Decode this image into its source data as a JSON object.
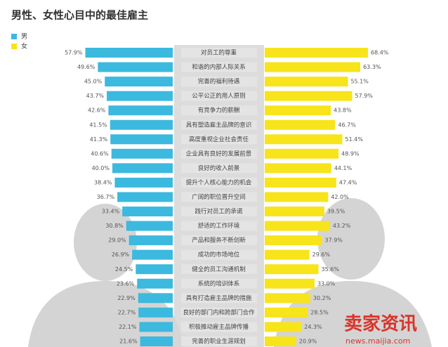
{
  "chart_data": {
    "type": "butterfly",
    "title": "男性、女性心目中的最佳雇主",
    "categories": [
      "对员工的尊重",
      "和谐的内部人际关系",
      "完善的福利待遇",
      "公平公正的用人原则",
      "有竞争力的薪酬",
      "具有塑造雇主品牌的意识",
      "高度重视企业社会责任",
      "企业具有良好的发展前景",
      "良好的收入前景",
      "提升个人核心能力的机会",
      "广阔的职位晋升空间",
      "践行对员工的承诺",
      "舒适的工作环境",
      "产品和服务不断创新",
      "成功的市场地位",
      "健全的员工沟通机制",
      "系统的培训体系",
      "具有打造雇主品牌的措施",
      "良好的部门内和跨部门合作",
      "积极推动雇主品牌传播",
      "完善的职业生涯规划"
    ],
    "series": [
      {
        "name": "男",
        "color": "#3cb9de",
        "values": [
          57.9,
          49.6,
          45.0,
          43.7,
          42.6,
          41.5,
          41.3,
          40.6,
          40.0,
          38.4,
          36.7,
          33.4,
          30.8,
          29.0,
          26.9,
          24.5,
          23.6,
          22.9,
          22.7,
          22.1,
          21.6
        ],
        "value_labels": [
          "57.9%",
          "49.6%",
          "45.0%",
          "43.7%",
          "42.6%",
          "41.5%",
          "41.3%",
          "40.6%",
          "40.0%",
          "38.4%",
          "36.7%",
          "33.4%",
          "30.8%",
          "29.0%",
          "26.9%",
          "24.5%",
          "23.6%",
          "22.9%",
          "22.7%",
          "22.1%",
          "21.6%"
        ]
      },
      {
        "name": "女",
        "color": "#f7e41b",
        "values": [
          68.4,
          63.3,
          55.1,
          57.9,
          43.8,
          46.7,
          51.4,
          48.9,
          44.1,
          47.4,
          42.0,
          39.5,
          43.2,
          37.9,
          29.6,
          35.6,
          33.0,
          30.2,
          28.5,
          24.3,
          20.9
        ],
        "value_labels": [
          "68.4%",
          "63.3%",
          "55.1%",
          "57.9%",
          "43.8%",
          "46.7%",
          "51.4%",
          "48.9%",
          "44.1%",
          "47.4%",
          "42.0%",
          "39.5%",
          "43.2%",
          "37.9%",
          "29.6%",
          "35.6%",
          "33.0%",
          "30.2%",
          "28.5%",
          "24.3%",
          "20.9%"
        ]
      }
    ],
    "watermark": "卖家资讯",
    "watermark_url": "news.maijia.com"
  }
}
